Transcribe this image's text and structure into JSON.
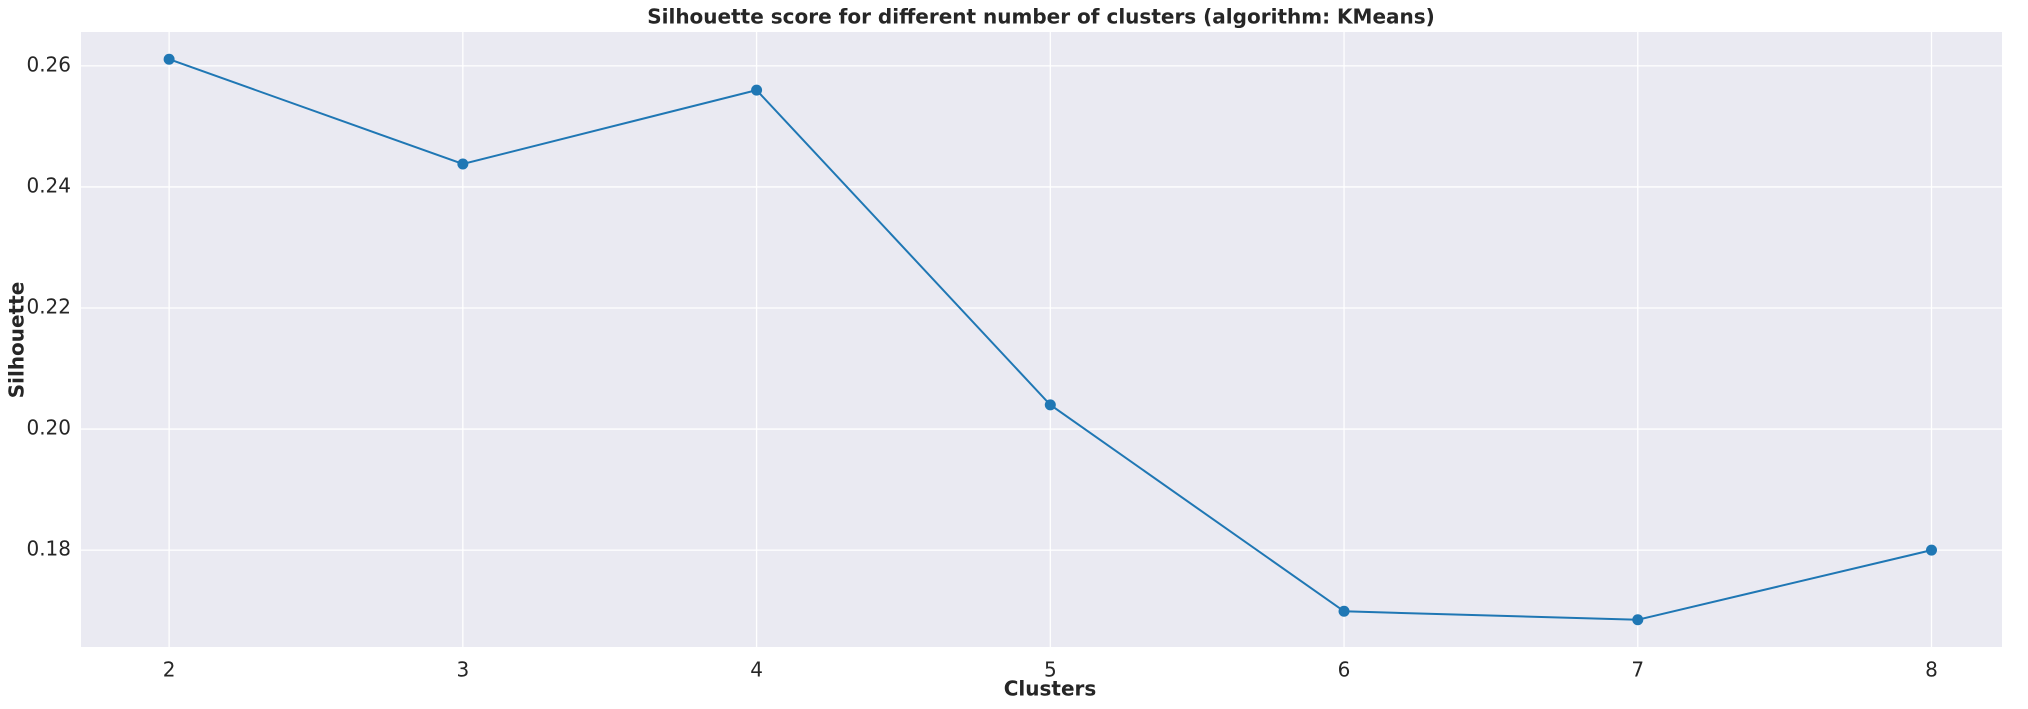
{
  "chart_data": {
    "type": "line",
    "title": "Silhouette score for different number of clusters (algorithm: KMeans)",
    "xlabel": "Clusters",
    "ylabel": "Silhouette",
    "x": [
      2,
      3,
      4,
      5,
      6,
      7,
      8
    ],
    "series": [
      {
        "name": "Silhouette",
        "color": "#1f77b4",
        "values": [
          0.2611,
          0.2438,
          0.256,
          0.204,
          0.1699,
          0.1685,
          0.18
        ]
      }
    ],
    "xlim": [
      1.7,
      8.24
    ],
    "ylim": [
      0.164,
      0.2656
    ],
    "xticks": [
      2,
      3,
      4,
      5,
      6,
      7,
      8
    ],
    "yticks": [
      0.18,
      {
        "value": 0.2,
        "label": "0.20"
      },
      0.22,
      0.24,
      0.26
    ],
    "grid": true,
    "marker": "circle"
  }
}
